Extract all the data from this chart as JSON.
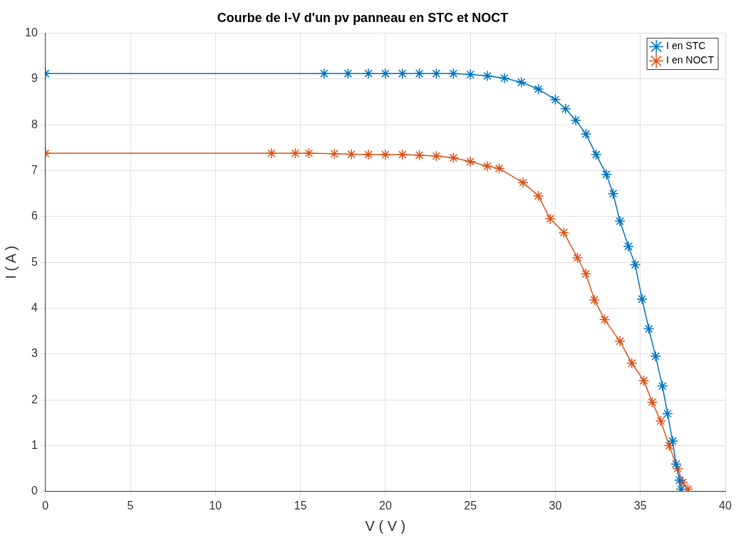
{
  "chart_data": {
    "type": "line",
    "title": "Courbe de I-V d'un pv panneau en STC et NOCT",
    "xlabel": "V ( V )",
    "ylabel": "I ( A )",
    "xlim": [
      0,
      40
    ],
    "xticks": [
      0,
      5,
      10,
      15,
      20,
      25,
      30,
      35,
      40
    ],
    "ylim": [
      0,
      10
    ],
    "yticks": [
      0,
      1,
      2,
      3,
      4,
      5,
      6,
      7,
      8,
      9,
      10
    ],
    "grid": true,
    "legend": "top right",
    "marker": "cross",
    "line_style": "solid",
    "series": [
      {
        "name": "I en STC",
        "color": "#0072bd",
        "x": [
          0,
          16.4,
          17.8,
          19,
          20,
          21,
          22,
          23,
          24,
          25,
          26,
          27,
          28,
          29,
          30,
          30.6,
          31.2,
          31.8,
          32.4,
          33,
          33.4,
          33.8,
          34.3,
          34.7,
          35.1,
          35.5,
          35.9,
          36.3,
          36.6,
          36.9,
          37.1,
          37.3,
          37.4
        ],
        "values": [
          9.12,
          9.12,
          9.12,
          9.12,
          9.12,
          9.12,
          9.12,
          9.12,
          9.12,
          9.1,
          9.07,
          9.02,
          8.93,
          8.78,
          8.55,
          8.35,
          8.1,
          7.8,
          7.35,
          6.92,
          6.5,
          5.9,
          5.35,
          4.95,
          4.2,
          3.55,
          2.95,
          2.3,
          1.7,
          1.1,
          0.6,
          0.25,
          0.05
        ]
      },
      {
        "name": "I en NOCT",
        "color": "#d95319",
        "x": [
          0,
          13.3,
          14.7,
          15.5,
          17,
          18,
          19,
          20,
          21,
          22,
          23,
          24,
          25,
          26,
          26.7,
          28.1,
          29,
          29.7,
          30.5,
          31.3,
          31.8,
          32.3,
          32.9,
          33.8,
          34.5,
          35.2,
          35.7,
          36.2,
          36.7,
          37.2,
          37.5,
          37.8
        ],
        "values": [
          7.38,
          7.38,
          7.38,
          7.38,
          7.37,
          7.36,
          7.35,
          7.35,
          7.35,
          7.34,
          7.32,
          7.28,
          7.2,
          7.1,
          7.05,
          6.74,
          6.45,
          5.95,
          5.65,
          5.1,
          4.75,
          4.18,
          3.75,
          3.28,
          2.8,
          2.42,
          1.95,
          1.54,
          1.0,
          0.5,
          0.2,
          0.05
        ]
      }
    ]
  }
}
